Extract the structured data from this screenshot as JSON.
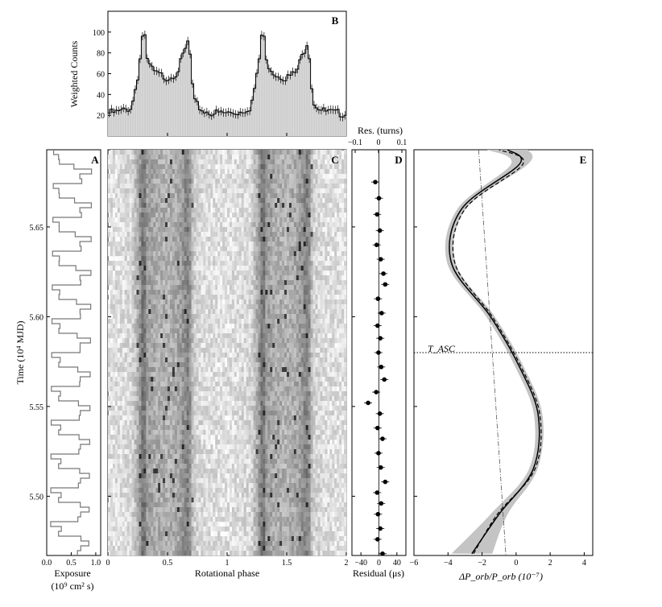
{
  "panels": {
    "A": {
      "letter": "A",
      "xlabel_line1": "Exposure",
      "xlabel_line2": "(10⁹ cm² s)",
      "xticks": [
        0.0,
        0.5,
        1.0
      ],
      "xtick_labels": [
        "0.0",
        "0.5",
        "1.0"
      ],
      "xlim": [
        0,
        1.1
      ]
    },
    "B": {
      "letter": "B",
      "ylabel": "Weighted Counts",
      "yticks": [
        20,
        40,
        60,
        80,
        100
      ],
      "ylim": [
        0,
        120
      ]
    },
    "C": {
      "letter": "C",
      "xlabel": "Rotational phase",
      "xticks": [
        0,
        0.5,
        1,
        1.5,
        2
      ],
      "xtick_labels": [
        "0",
        "0.5",
        "1",
        "1.5",
        "2"
      ]
    },
    "D": {
      "letter": "D",
      "top_label": "Res. (turns)",
      "top_ticks": [
        "−0.1",
        "0",
        "0.1"
      ],
      "xlabel": "Residual (μs)",
      "xticks": [
        "−40",
        "0",
        "40"
      ],
      "xlim": [
        -60,
        60
      ]
    },
    "E": {
      "letter": "E",
      "xlabel": "ΔP_orb/P_orb  (10⁻⁷)",
      "xticks": [
        -6,
        -4,
        -2,
        0,
        2,
        4
      ],
      "xtick_labels": [
        "−6",
        "−4",
        "−2",
        "0",
        "2",
        "4"
      ],
      "xlim": [
        -6,
        4.5
      ],
      "tasc_label": "T_ASC",
      "tasc_value": 5.58
    }
  },
  "time_axis": {
    "ylabel": "Time (10⁴ MJD)",
    "yticks": [
      5.5,
      5.55,
      5.6,
      5.65
    ],
    "ytick_labels": [
      "5.50",
      "5.55",
      "5.60",
      "5.65"
    ],
    "ylim": [
      5.467,
      5.693
    ]
  },
  "chart_data": [
    {
      "type": "bar",
      "panel": "B",
      "title": "",
      "xlabel": "",
      "ylabel": "Weighted Counts",
      "ylim": [
        0,
        120
      ],
      "x_range": [
        0,
        2
      ],
      "bins": 100,
      "description_profile_one_period": [
        {
          "phase": 0.0,
          "counts": 24
        },
        {
          "phase": 0.1,
          "counts": 25
        },
        {
          "phase": 0.2,
          "counts": 30
        },
        {
          "phase": 0.26,
          "counts": 65
        },
        {
          "phase": 0.3,
          "counts": 110
        },
        {
          "phase": 0.33,
          "counts": 73
        },
        {
          "phase": 0.4,
          "counts": 62
        },
        {
          "phase": 0.5,
          "counts": 58
        },
        {
          "phase": 0.58,
          "counts": 63
        },
        {
          "phase": 0.64,
          "counts": 82
        },
        {
          "phase": 0.68,
          "counts": 95
        },
        {
          "phase": 0.72,
          "counts": 35
        },
        {
          "phase": 0.8,
          "counts": 26
        },
        {
          "phase": 0.9,
          "counts": 24
        }
      ]
    },
    {
      "type": "line",
      "panel": "A",
      "xlabel": "Exposure",
      "description": "Exposure per time bin, stepped, varying between ~0.2 and ~1.0"
    },
    {
      "type": "heatmap",
      "panel": "C",
      "xlabel": "Rotational phase",
      "x_range": [
        0,
        2
      ],
      "description": "Photon phase vs time, dark vertical bands near phase 0.3 and 0.68 repeating at 1.3 and 1.68"
    },
    {
      "type": "scatter",
      "panel": "D",
      "xlabel": "Residual (μs)",
      "xlim": [
        -60,
        60
      ],
      "points": [
        {
          "t": 5.675,
          "r": -8
        },
        {
          "t": 5.666,
          "r": 0
        },
        {
          "t": 5.657,
          "r": -4
        },
        {
          "t": 5.648,
          "r": 2
        },
        {
          "t": 5.64,
          "r": -5
        },
        {
          "t": 5.632,
          "r": 4
        },
        {
          "t": 5.624,
          "r": 10
        },
        {
          "t": 5.618,
          "r": 14
        },
        {
          "t": 5.61,
          "r": -2
        },
        {
          "t": 5.602,
          "r": 6
        },
        {
          "t": 5.595,
          "r": -3
        },
        {
          "t": 5.588,
          "r": 3
        },
        {
          "t": 5.58,
          "r": -1
        },
        {
          "t": 5.572,
          "r": 5
        },
        {
          "t": 5.565,
          "r": 12
        },
        {
          "t": 5.558,
          "r": -6
        },
        {
          "t": 5.552,
          "r": -24
        },
        {
          "t": 5.546,
          "r": 2
        },
        {
          "t": 5.538,
          "r": -3
        },
        {
          "t": 5.532,
          "r": 8
        },
        {
          "t": 5.524,
          "r": -1
        },
        {
          "t": 5.516,
          "r": 4
        },
        {
          "t": 5.508,
          "r": 14
        },
        {
          "t": 5.502,
          "r": -4
        },
        {
          "t": 5.496,
          "r": 5
        },
        {
          "t": 5.49,
          "r": -2
        },
        {
          "t": 5.482,
          "r": 3
        },
        {
          "t": 5.476,
          "r": -3
        },
        {
          "t": 5.468,
          "r": 8
        }
      ]
    },
    {
      "type": "line",
      "panel": "E",
      "xlabel": "ΔP_orb/P_orb (10⁻⁷)",
      "xlim": [
        -6,
        4.5
      ],
      "series": [
        {
          "points": [
            [
              -2.6,
              5.468
            ],
            [
              -1.0,
              5.49
            ],
            [
              1.0,
              5.515
            ],
            [
              1.3,
              5.545
            ],
            [
              0.2,
              5.572
            ],
            [
              -1.5,
              5.6
            ],
            [
              -3.8,
              5.63
            ],
            [
              -3.2,
              5.66
            ],
            [
              0.2,
              5.685
            ],
            [
              -0.5,
              5.693
            ]
          ]
        },
        {
          "points": [
            [
              -2.5,
              5.468
            ],
            [
              -1.1,
              5.49
            ],
            [
              1.1,
              5.515
            ],
            [
              1.4,
              5.545
            ],
            [
              0.3,
              5.572
            ],
            [
              -1.4,
              5.6
            ],
            [
              -3.6,
              5.63
            ],
            [
              -3.0,
              5.66
            ],
            [
              0.4,
              5.685
            ],
            [
              -1.0,
              5.693
            ]
          ]
        }
      ]
    }
  ]
}
